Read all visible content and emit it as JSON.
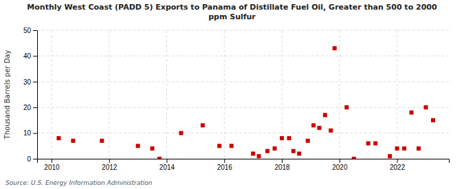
{
  "chart_data": {
    "type": "scatter",
    "title": "Monthly West Coast (PADD 5) Exports to Panama of Distillate Fuel Oil, Greater than 500 to 2000\nppm Sulfur",
    "ylabel": "Thousand Barrels per Day",
    "annotations": [
      "Source: U.S. Energy Information Administration"
    ],
    "color": "#cc0000",
    "marker": "square",
    "grid": true,
    "xlim": [
      2009.5,
      2023.8
    ],
    "xticks": [
      2010,
      2012,
      2014,
      2016,
      2018,
      2020,
      2022
    ],
    "ylim": [
      0,
      50
    ],
    "yticks": [
      0,
      10,
      20,
      30,
      40,
      50
    ],
    "x": [
      2010.25,
      2010.75,
      2011.75,
      2013.0,
      2013.5,
      2013.75,
      2014.5,
      2015.25,
      2015.83,
      2016.25,
      2017.0,
      2017.2,
      2017.5,
      2017.75,
      2018.0,
      2018.25,
      2018.4,
      2018.6,
      2018.9,
      2019.1,
      2019.3,
      2019.5,
      2019.7,
      2019.83,
      2020.25,
      2020.5,
      2021.0,
      2021.25,
      2021.75,
      2022.0,
      2022.25,
      2022.5,
      2022.75,
      2023.0,
      2023.25
    ],
    "values": [
      8,
      7,
      7,
      5,
      4,
      0,
      10,
      13,
      5,
      5,
      2,
      1,
      3,
      4,
      8,
      8,
      3,
      2,
      7,
      13,
      12,
      17,
      11,
      43,
      20,
      0,
      6,
      6,
      1,
      4,
      4,
      18,
      4,
      20,
      15
    ]
  }
}
